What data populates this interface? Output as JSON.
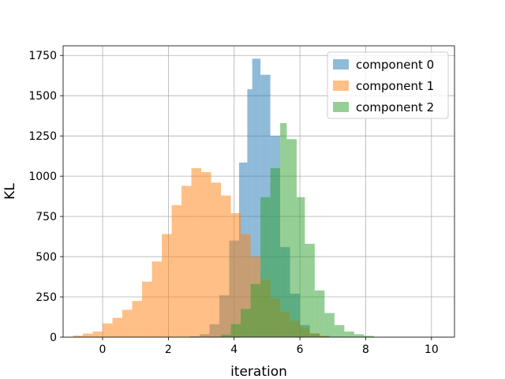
{
  "chart_data": {
    "type": "bar",
    "xlabel": "iteration",
    "ylabel": "KL",
    "xlim": [
      -1.2,
      10.7
    ],
    "ylim": [
      0,
      1810
    ],
    "xticks": [
      0,
      2,
      4,
      6,
      8,
      10
    ],
    "yticks": [
      0,
      250,
      500,
      750,
      1000,
      1250,
      1500,
      1750
    ],
    "grid": true,
    "legend_position": "top-right",
    "series": [
      {
        "name": "component 0",
        "color": "#1f77b4",
        "bins": [
          [
            2.65,
            2.95,
            5
          ],
          [
            2.95,
            3.25,
            18
          ],
          [
            3.25,
            3.55,
            80
          ],
          [
            3.55,
            3.85,
            260
          ],
          [
            3.85,
            4.15,
            600
          ],
          [
            4.15,
            4.4,
            1085
          ],
          [
            4.4,
            4.55,
            1540
          ],
          [
            4.55,
            4.8,
            1730
          ],
          [
            4.8,
            5.1,
            1630
          ],
          [
            5.1,
            5.4,
            1250
          ],
          [
            5.4,
            5.7,
            560
          ],
          [
            5.7,
            6.0,
            270
          ],
          [
            6.0,
            6.3,
            75
          ],
          [
            6.3,
            6.6,
            20
          ],
          [
            6.6,
            6.9,
            5
          ]
        ]
      },
      {
        "name": "component 1",
        "color": "#ff7f0e",
        "bins": [
          [
            -0.9,
            -0.6,
            10
          ],
          [
            -0.6,
            -0.3,
            22
          ],
          [
            -0.3,
            0.0,
            35
          ],
          [
            0.0,
            0.3,
            85
          ],
          [
            0.3,
            0.6,
            120
          ],
          [
            0.6,
            0.9,
            170
          ],
          [
            0.9,
            1.2,
            225
          ],
          [
            1.2,
            1.5,
            345
          ],
          [
            1.5,
            1.8,
            470
          ],
          [
            1.8,
            2.1,
            640
          ],
          [
            2.1,
            2.4,
            820
          ],
          [
            2.4,
            2.7,
            940
          ],
          [
            2.7,
            3.0,
            1050
          ],
          [
            3.0,
            3.3,
            1025
          ],
          [
            3.3,
            3.6,
            960
          ],
          [
            3.6,
            3.9,
            880
          ],
          [
            3.9,
            4.2,
            770
          ],
          [
            4.2,
            4.5,
            640
          ],
          [
            4.5,
            4.8,
            500
          ],
          [
            4.8,
            5.1,
            355
          ],
          [
            5.1,
            5.4,
            240
          ],
          [
            5.4,
            5.7,
            155
          ],
          [
            5.7,
            6.0,
            100
          ],
          [
            6.0,
            6.3,
            55
          ],
          [
            6.3,
            6.6,
            25
          ],
          [
            6.6,
            6.9,
            10
          ]
        ]
      },
      {
        "name": "component 2",
        "color": "#2ca02c",
        "bins": [
          [
            3.6,
            3.9,
            15
          ],
          [
            3.9,
            4.2,
            80
          ],
          [
            4.2,
            4.5,
            175
          ],
          [
            4.5,
            4.8,
            330
          ],
          [
            4.8,
            5.1,
            870
          ],
          [
            5.1,
            5.4,
            1050
          ],
          [
            5.4,
            5.6,
            1330
          ],
          [
            5.6,
            5.9,
            1230
          ],
          [
            5.9,
            6.15,
            870
          ],
          [
            6.15,
            6.45,
            580
          ],
          [
            6.45,
            6.75,
            290
          ],
          [
            6.75,
            7.05,
            150
          ],
          [
            7.05,
            7.35,
            75
          ],
          [
            7.35,
            7.65,
            35
          ],
          [
            7.65,
            7.95,
            18
          ],
          [
            7.95,
            8.25,
            8
          ]
        ]
      }
    ]
  }
}
